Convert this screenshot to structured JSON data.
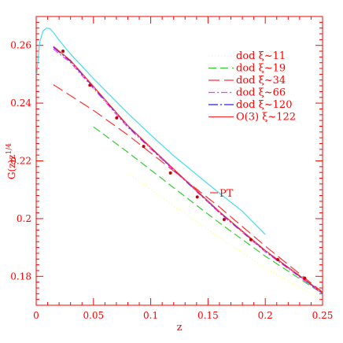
{
  "chart_data": {
    "type": "line",
    "xlabel": "z",
    "ylabel": "G(z)z^{1/4}",
    "xlim": [
      0,
      0.25
    ],
    "ylim": [
      0.17,
      0.27
    ],
    "x_ticks": [
      "0",
      "0.05",
      "0.1",
      "0.15",
      "0.2",
      "0.25"
    ],
    "y_ticks": [
      "0.18",
      "0.2",
      "0.22",
      "0.24",
      "0.26"
    ],
    "grid": false,
    "legend_position": "top-right",
    "annotation": "PT",
    "series": [
      {
        "name": "dod ξ~11",
        "color": "#ffff66",
        "dash": "1,3",
        "x": [
          0.08,
          0.12,
          0.16,
          0.2,
          0.25
        ],
        "y": [
          0.2157,
          0.2045,
          0.1935,
          0.183,
          0.1718
        ]
      },
      {
        "name": "dod ξ~19",
        "color": "#33cc33",
        "dash": "10,5",
        "x": [
          0.05,
          0.08,
          0.12,
          0.16,
          0.2,
          0.25
        ],
        "y": [
          0.2318,
          0.223,
          0.2107,
          0.1985,
          0.187,
          0.174
        ]
      },
      {
        "name": "dod ξ~34",
        "color": "#ff3333",
        "dash": "14,6",
        "x": [
          0.015,
          0.05,
          0.08,
          0.12,
          0.16,
          0.2,
          0.25
        ],
        "y": [
          0.2464,
          0.2375,
          0.229,
          0.2165,
          0.204,
          0.1905,
          0.1745
        ]
      },
      {
        "name": "dod ξ~66",
        "color": "#ff33ff",
        "dash": "8,3,2,3",
        "x": [
          0.015,
          0.03,
          0.05,
          0.08,
          0.12,
          0.16,
          0.2,
          0.25
        ],
        "y": [
          0.2588,
          0.254,
          0.2451,
          0.2316,
          0.2168,
          0.202,
          0.1885,
          0.174
        ]
      },
      {
        "name": "dod ξ~120",
        "color": "#2222ee",
        "dash": "12,3,2,3",
        "x": [
          0.015,
          0.03,
          0.05,
          0.08,
          0.12,
          0.16,
          0.2,
          0.25
        ],
        "y": [
          0.2594,
          0.2545,
          0.2455,
          0.232,
          0.217,
          0.2022,
          0.1888,
          0.1742
        ]
      },
      {
        "name": "O(3) ξ~122",
        "color": "#ff3333",
        "dash": "",
        "x": [
          0.015,
          0.03,
          0.05,
          0.08,
          0.12,
          0.16,
          0.2,
          0.25
        ],
        "y": [
          0.2597,
          0.2548,
          0.2458,
          0.2322,
          0.2172,
          0.2024,
          0.189,
          0.1744
        ]
      },
      {
        "name": "PT",
        "color": "#44ddee",
        "dash": "",
        "x": [
          0.0005,
          0.003,
          0.006,
          0.009,
          0.012,
          0.015,
          0.02,
          0.03,
          0.05,
          0.08,
          0.1,
          0.12,
          0.15,
          0.18,
          0.2
        ],
        "y": [
          0.25,
          0.261,
          0.265,
          0.266,
          0.2658,
          0.2645,
          0.2618,
          0.257,
          0.2485,
          0.2365,
          0.229,
          0.2218,
          0.212,
          0.2025,
          0.1945
        ]
      }
    ],
    "markers": {
      "color": "#cc0000",
      "x": [
        0.0234,
        0.0469,
        0.0703,
        0.0938,
        0.1172,
        0.1406,
        0.1641,
        0.1875,
        0.2109,
        0.2344
      ],
      "y": [
        0.258,
        0.2462,
        0.2349,
        0.225,
        0.2158,
        0.2075,
        0.1997,
        0.1927,
        0.1858,
        0.1794
      ]
    }
  }
}
